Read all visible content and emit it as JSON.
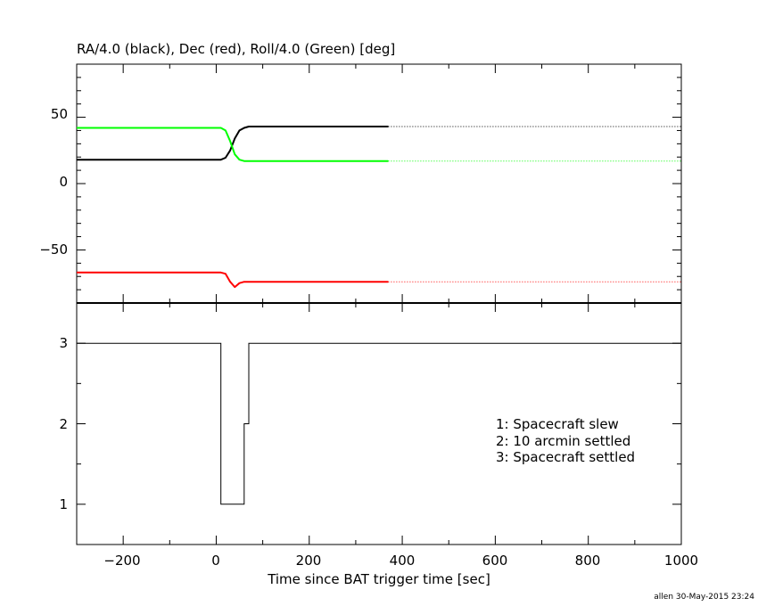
{
  "footer": {
    "stamp": "allen 30-May-2015 23:24"
  },
  "chart_data": [
    {
      "type": "line",
      "title": "RA/4.0 (black), Dec (red), Roll/4.0 (Green) [deg]",
      "xlim": [
        -300,
        1000
      ],
      "ylim": [
        -90,
        90
      ],
      "y_ticks": [
        50,
        0,
        -50
      ],
      "y_tick_labels": [
        "50",
        "0",
        "−50"
      ],
      "series": [
        {
          "color": "#000000",
          "x": [
            -300,
            10,
            20,
            30,
            40,
            50,
            60,
            70,
            370,
            1000
          ],
          "y": [
            18,
            18,
            19.5,
            25,
            34,
            40,
            42,
            43,
            43,
            43
          ],
          "dotted_from": 370
        },
        {
          "color": "#ff0000",
          "x": [
            -300,
            10,
            20,
            30,
            40,
            50,
            60,
            70,
            370,
            1000
          ],
          "y": [
            -67,
            -67,
            -68,
            -74,
            -78,
            -75,
            -74,
            -74,
            -74,
            -74
          ],
          "dotted_from": 370
        },
        {
          "color": "#00ff00",
          "x": [
            -300,
            10,
            20,
            30,
            40,
            50,
            60,
            70,
            370,
            1000
          ],
          "y": [
            42,
            42,
            40,
            32,
            22,
            18,
            17,
            17,
            17,
            17
          ],
          "dotted_from": 370
        }
      ]
    },
    {
      "type": "line",
      "xlabel": "Time since BAT trigger time [sec]",
      "xlim": [
        -300,
        1000
      ],
      "ylim": [
        0.5,
        3.5
      ],
      "x_ticks": [
        -200,
        0,
        200,
        400,
        600,
        800,
        1000
      ],
      "x_tick_labels": [
        "−200",
        "0",
        "200",
        "400",
        "600",
        "800",
        "1000"
      ],
      "y_ticks": [
        3,
        2,
        1
      ],
      "y_tick_labels": [
        "3",
        "2",
        "1"
      ],
      "series": [
        {
          "color": "#000000",
          "step": true,
          "x": [
            -300,
            10,
            10,
            60,
            60,
            70,
            70,
            1000
          ],
          "y": [
            3,
            3,
            1,
            1,
            2,
            2,
            3,
            3
          ]
        }
      ],
      "annotations": [
        "1: Spacecraft slew",
        "2: 10 arcmin settled",
        "3: Spacecraft settled"
      ]
    }
  ]
}
